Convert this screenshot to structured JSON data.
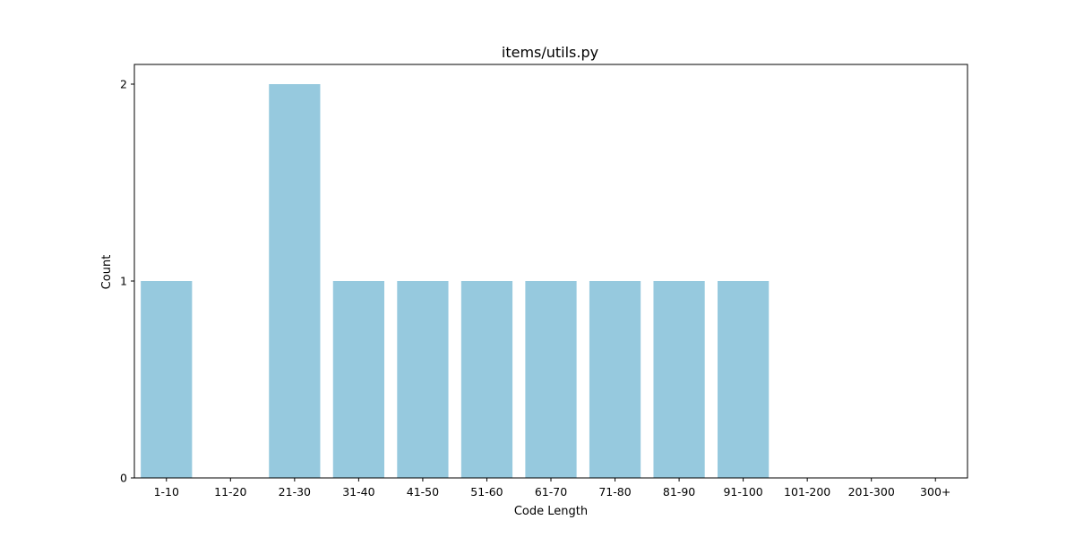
{
  "chart_data": {
    "type": "bar",
    "title": "items/utils.py",
    "xlabel": "Code Length",
    "ylabel": "Count",
    "categories": [
      "1-10",
      "11-20",
      "21-30",
      "31-40",
      "41-50",
      "51-60",
      "61-70",
      "71-80",
      "81-90",
      "91-100",
      "101-200",
      "201-300",
      "300+"
    ],
    "values": [
      1,
      0,
      2,
      1,
      1,
      1,
      1,
      1,
      1,
      1,
      0,
      0,
      0
    ],
    "ylim": [
      0,
      2.1
    ],
    "yticks": [
      0,
      1,
      2
    ],
    "grid": false,
    "legend": false,
    "bar_color": "#96c9de"
  }
}
